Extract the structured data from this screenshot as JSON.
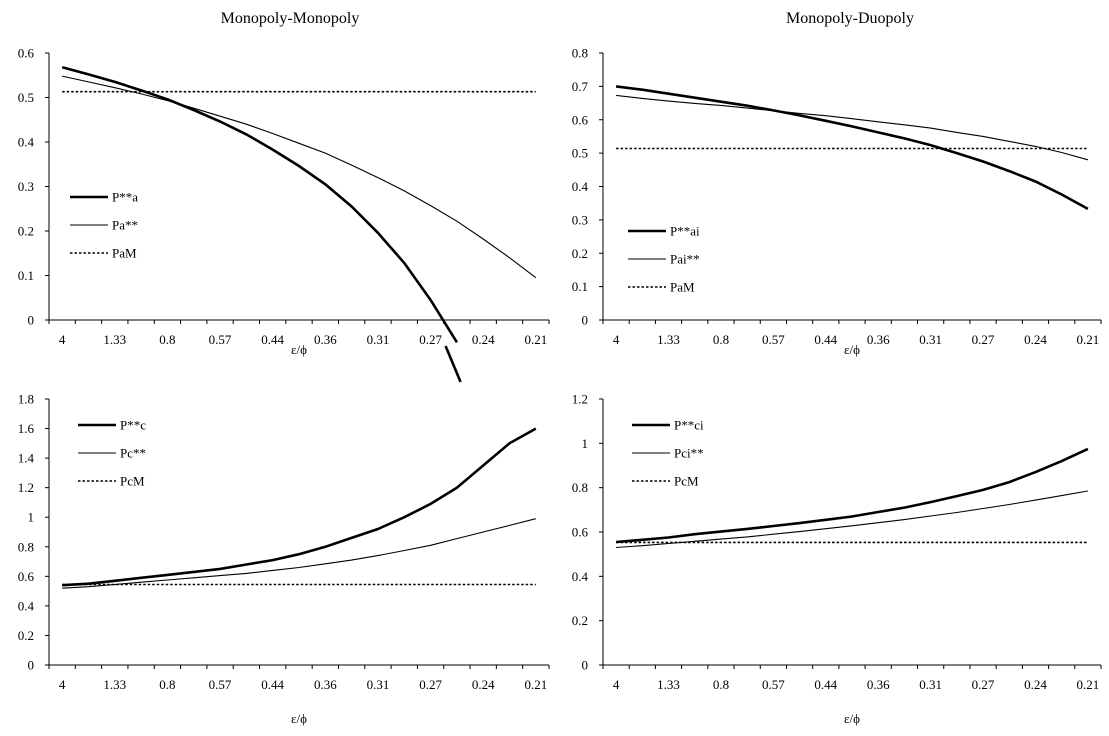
{
  "chart_data": [
    {
      "type": "line",
      "title": "Monopoly-Monopoly",
      "xlabel": "ε/ϕ",
      "ylabel": "",
      "categories": [
        "4",
        "",
        "1.33",
        "",
        "0.8",
        "",
        "0.57",
        "",
        "0.44",
        "",
        "0.36",
        "",
        "0.31",
        "",
        "0.27",
        "",
        "0.24",
        "",
        "0.21"
      ],
      "ylim": [
        0,
        0.6
      ],
      "ytick_step": 0.1,
      "ytick_labels": [
        "0",
        "0.1",
        "0.2",
        "0.3",
        "0.4",
        "0.5",
        "0.6"
      ],
      "legend_position": "middle-left",
      "series": [
        {
          "name": "P**a",
          "style": "thick",
          "values": [
            0.568,
            0.552,
            0.535,
            0.516,
            0.496,
            0.472,
            0.446,
            0.417,
            0.383,
            0.346,
            0.305,
            0.255,
            0.196,
            0.128,
            0.045,
            -0.05,
            null,
            null,
            null
          ]
        },
        {
          "name": "Pa**",
          "style": "thin",
          "values": [
            0.548,
            0.535,
            0.522,
            0.508,
            0.493,
            0.476,
            0.458,
            0.44,
            0.419,
            0.397,
            0.375,
            0.348,
            0.32,
            0.29,
            0.257,
            0.222,
            0.182,
            0.14,
            0.095
          ]
        },
        {
          "name": "PaM",
          "style": "dotted",
          "values": [
            0.513,
            0.513,
            0.513,
            0.513,
            0.513,
            0.513,
            0.513,
            0.513,
            0.513,
            0.513,
            0.513,
            0.513,
            0.513,
            0.513,
            0.513,
            0.513,
            0.513,
            0.513,
            0.513
          ]
        }
      ]
    },
    {
      "type": "line",
      "title": "Monopoly-Duopoly",
      "xlabel": "ε/ϕ",
      "ylabel": "",
      "categories": [
        "4",
        "",
        "1.33",
        "",
        "0.8",
        "",
        "0.57",
        "",
        "0.44",
        "",
        "0.36",
        "",
        "0.31",
        "",
        "0.27",
        "",
        "0.24",
        "",
        "0.21"
      ],
      "ylim": [
        0,
        0.8
      ],
      "ytick_step": 0.1,
      "ytick_labels": [
        "0",
        "0.1",
        "0.2",
        "0.3",
        "0.4",
        "0.5",
        "0.6",
        "0.7",
        "0.8"
      ],
      "legend_position": "bottom-left",
      "series": [
        {
          "name": "P**ai",
          "style": "thick",
          "values": [
            0.7,
            0.69,
            0.678,
            0.666,
            0.654,
            0.642,
            0.628,
            0.613,
            0.597,
            0.58,
            0.562,
            0.544,
            0.524,
            0.5,
            0.475,
            0.446,
            0.415,
            0.376,
            0.333
          ]
        },
        {
          "name": "Pai**",
          "style": "thin",
          "values": [
            0.673,
            0.664,
            0.656,
            0.649,
            0.643,
            0.635,
            0.627,
            0.619,
            0.612,
            0.603,
            0.594,
            0.585,
            0.575,
            0.562,
            0.55,
            0.535,
            0.52,
            0.502,
            0.48
          ]
        },
        {
          "name": "PaM",
          "style": "dotted",
          "values": [
            0.514,
            0.514,
            0.514,
            0.514,
            0.514,
            0.514,
            0.514,
            0.514,
            0.514,
            0.514,
            0.514,
            0.514,
            0.514,
            0.514,
            0.514,
            0.514,
            0.514,
            0.514,
            0.514
          ]
        }
      ]
    },
    {
      "type": "line",
      "title": "",
      "xlabel": "ε/ϕ",
      "ylabel": "",
      "categories": [
        "4",
        "",
        "1.33",
        "",
        "0.8",
        "",
        "0.57",
        "",
        "0.44",
        "",
        "0.36",
        "",
        "0.31",
        "",
        "0.27",
        "",
        "0.24",
        "",
        "0.21"
      ],
      "ylim": [
        0,
        1.8
      ],
      "ytick_step": 0.2,
      "ytick_labels": [
        "0",
        "0.2",
        "0.4",
        "0.6",
        "0.8",
        "1",
        "1.2",
        "1.4",
        "1.6",
        "1.8"
      ],
      "legend_position": "top-left",
      "series": [
        {
          "name": "P**c",
          "style": "thick",
          "values": [
            0.54,
            0.55,
            0.57,
            0.59,
            0.61,
            0.63,
            0.65,
            0.68,
            0.71,
            0.75,
            0.8,
            0.86,
            0.92,
            1.0,
            1.09,
            1.2,
            1.35,
            1.5,
            1.6
          ]
        },
        {
          "name": "Pc**",
          "style": "thin",
          "values": [
            0.52,
            0.53,
            0.545,
            0.56,
            0.575,
            0.59,
            0.605,
            0.62,
            0.64,
            0.66,
            0.685,
            0.71,
            0.74,
            0.775,
            0.81,
            0.855,
            0.9,
            0.945,
            0.99
          ]
        },
        {
          "name": "PcM",
          "style": "dotted",
          "values": [
            0.545,
            0.545,
            0.545,
            0.545,
            0.545,
            0.545,
            0.545,
            0.545,
            0.545,
            0.545,
            0.545,
            0.545,
            0.545,
            0.545,
            0.545,
            0.545,
            0.545,
            0.545,
            0.545
          ]
        }
      ]
    },
    {
      "type": "line",
      "title": "",
      "xlabel": "ε/ϕ",
      "ylabel": "",
      "categories": [
        "4",
        "",
        "1.33",
        "",
        "0.8",
        "",
        "0.57",
        "",
        "0.44",
        "",
        "0.36",
        "",
        "0.31",
        "",
        "0.27",
        "",
        "0.24",
        "",
        "0.21"
      ],
      "ylim": [
        0,
        1.2
      ],
      "ytick_step": 0.2,
      "ytick_labels": [
        "0",
        "0.2",
        "0.4",
        "0.6",
        "0.8",
        "1",
        "1.2"
      ],
      "legend_position": "top-left",
      "series": [
        {
          "name": "P**ci",
          "style": "thick",
          "values": [
            0.555,
            0.565,
            0.575,
            0.59,
            0.602,
            0.614,
            0.627,
            0.64,
            0.655,
            0.67,
            0.69,
            0.71,
            0.735,
            0.762,
            0.79,
            0.825,
            0.87,
            0.92,
            0.975
          ]
        },
        {
          "name": "Pci**",
          "style": "thin",
          "values": [
            0.53,
            0.538,
            0.548,
            0.558,
            0.568,
            0.578,
            0.59,
            0.602,
            0.615,
            0.628,
            0.642,
            0.656,
            0.672,
            0.688,
            0.706,
            0.724,
            0.744,
            0.764,
            0.785
          ]
        },
        {
          "name": "PcM",
          "style": "dotted",
          "values": [
            0.553,
            0.553,
            0.553,
            0.553,
            0.553,
            0.553,
            0.553,
            0.553,
            0.553,
            0.553,
            0.553,
            0.553,
            0.553,
            0.553,
            0.553,
            0.553,
            0.553,
            0.553,
            0.553
          ]
        }
      ]
    }
  ]
}
